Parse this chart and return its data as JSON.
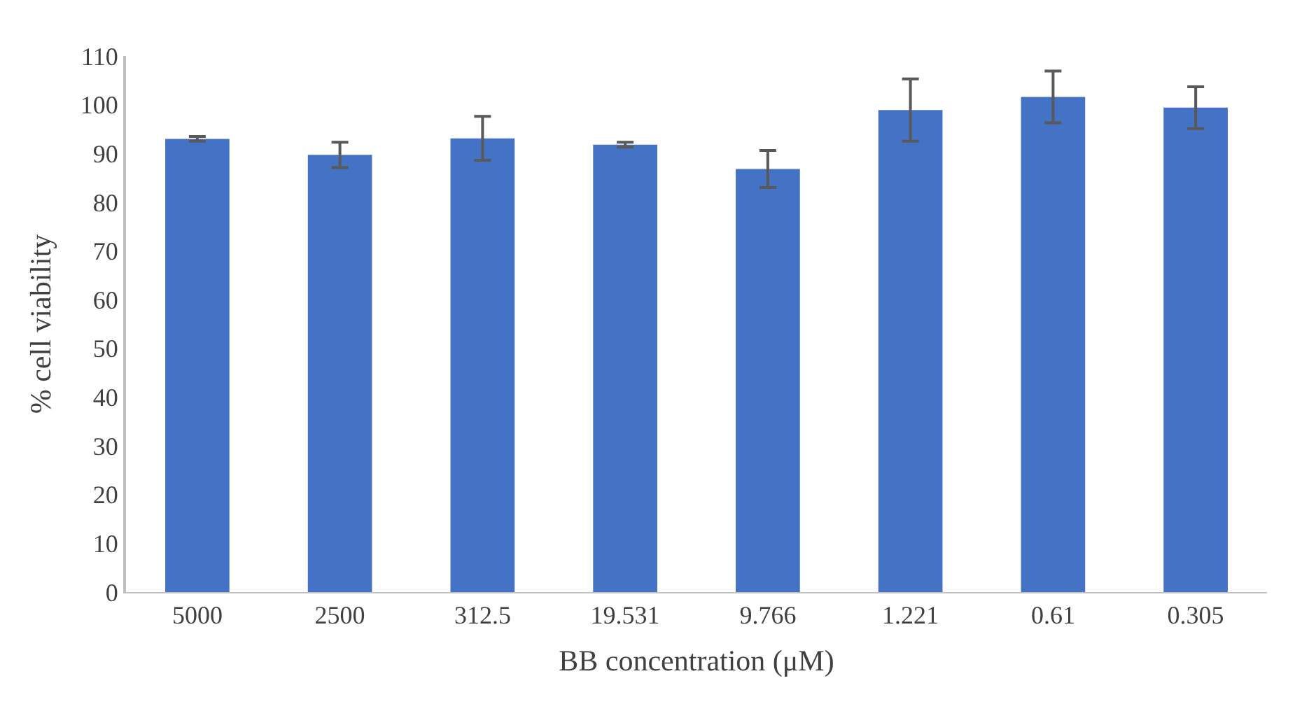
{
  "chart_data": {
    "type": "bar",
    "xlabel": "BB concentration (μM)",
    "ylabel": "% cell viability",
    "categories": [
      "5000",
      "2500",
      "312.5",
      "19.531",
      "9.766",
      "1.221",
      "0.61",
      "0.305"
    ],
    "values": [
      93.0,
      89.7,
      93.1,
      91.8,
      86.8,
      98.9,
      101.6,
      99.4
    ],
    "errors": [
      0.5,
      2.6,
      4.5,
      0.5,
      3.8,
      6.4,
      5.3,
      4.3
    ],
    "color": "#4472c4",
    "ylim": [
      0,
      110
    ],
    "yticks": [
      0,
      10,
      20,
      30,
      40,
      50,
      60,
      70,
      80,
      90,
      100,
      110
    ],
    "grid": false
  }
}
